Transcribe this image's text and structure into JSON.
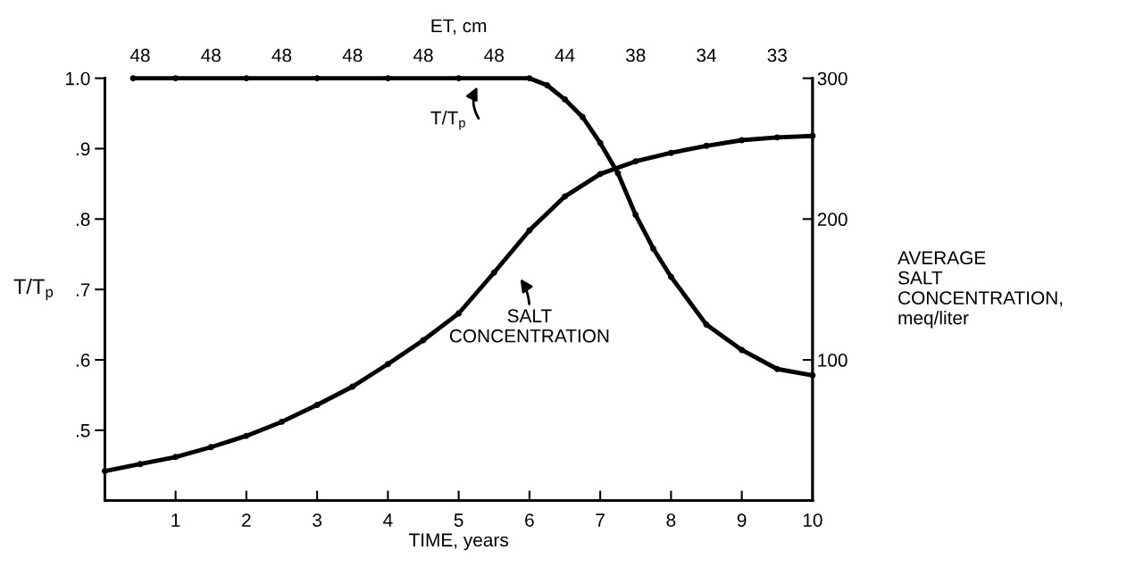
{
  "chart_data": {
    "type": "line",
    "xlabel": "TIME, years",
    "ylabel": "T/T$_{p}$",
    "y2label": "AVERAGE\nSALT\nCONCENTRATION,\nmeq/liter",
    "xlim": [
      0,
      10
    ],
    "xticks": [
      1,
      2,
      3,
      4,
      5,
      6,
      7,
      8,
      9,
      10
    ],
    "ylim": [
      0.4,
      1.0
    ],
    "yticks": [
      {
        "value": 0.5,
        "label": ".5"
      },
      {
        "value": 0.6,
        "label": ".6"
      },
      {
        "value": 0.7,
        "label": ".7"
      },
      {
        "value": 0.8,
        "label": ".8"
      },
      {
        "value": 0.9,
        "label": ".9"
      },
      {
        "value": 1.0,
        "label": "1.0"
      }
    ],
    "y2lim": [
      0,
      300
    ],
    "y2ticks": [
      100,
      200,
      300
    ],
    "marker": "circle",
    "line_style": "solid",
    "grid": false,
    "series": [
      {
        "color": "#000000",
        "x": [
          0.4,
          1,
          2,
          3,
          4,
          5,
          6,
          6.25,
          6.5,
          6.75,
          7,
          7.25,
          7.5,
          7.75,
          8,
          8.5,
          9,
          9.5,
          10
        ],
        "values": [
          1.0,
          1.0,
          1.0,
          1.0,
          1.0,
          1.0,
          1.0,
          0.99,
          0.97,
          0.945,
          0.908,
          0.865,
          0.806,
          0.758,
          0.718,
          0.65,
          0.614,
          0.587,
          0.578
        ]
      },
      {
        "color": "#000000",
        "axis": "y2",
        "x": [
          0,
          0.5,
          1,
          1.5,
          2,
          2.5,
          3,
          3.5,
          4,
          4.5,
          5,
          5.5,
          6,
          6.5,
          7,
          7.5,
          8,
          8.5,
          9,
          9.5,
          10
        ],
        "values": [
          21,
          26,
          31,
          38,
          46,
          56,
          68,
          81,
          97,
          114,
          133,
          162,
          192,
          216,
          232,
          241,
          247,
          252,
          256,
          258,
          259
        ]
      }
    ],
    "annotations": [
      "T/T$_{p}$",
      "SALT\nCONCENTRATION",
      "ET, cm",
      "48",
      "48",
      "48",
      "48",
      "48",
      "48",
      "44",
      "38",
      "34",
      "33"
    ]
  }
}
